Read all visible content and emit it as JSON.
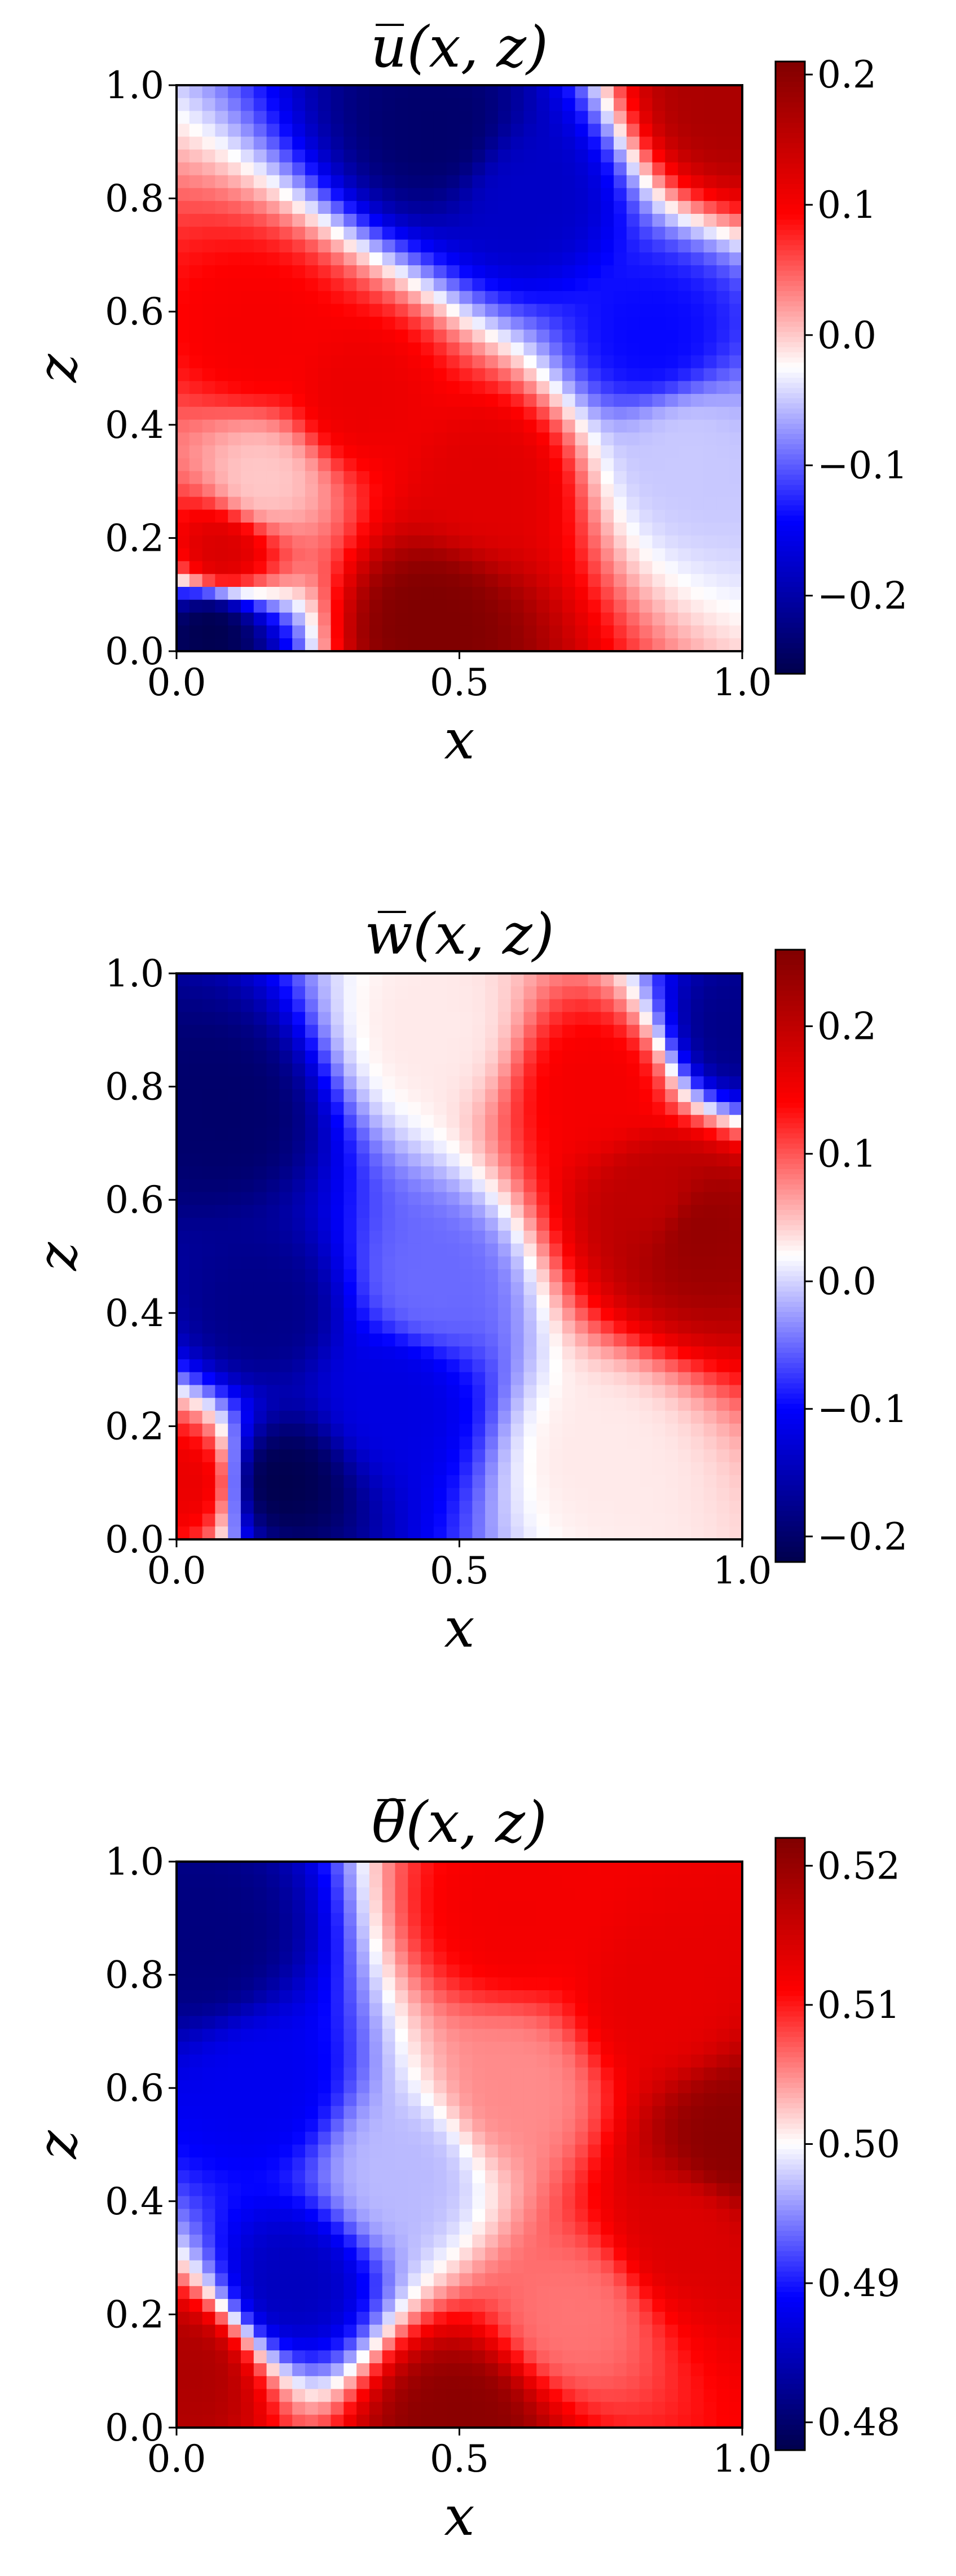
{
  "chart_data": [
    {
      "type": "heatmap",
      "title": "u̅(x, z)",
      "xlabel": "x",
      "ylabel": "z",
      "xlim": [
        0.0,
        1.0
      ],
      "ylim": [
        0.0,
        1.0
      ],
      "xticks": [
        "0.0",
        "0.5",
        "1.0"
      ],
      "yticks": [
        "0.0",
        "0.2",
        "0.4",
        "0.6",
        "0.8",
        "1.0"
      ],
      "colormap": "seismic",
      "clim": [
        -0.26,
        0.21
      ],
      "colorbar_ticks": [
        {
          "value": 0.2,
          "label": "0.2"
        },
        {
          "value": 0.1,
          "label": "0.1"
        },
        {
          "value": 0.0,
          "label": "0.0"
        },
        {
          "value": -0.1,
          "label": "−0.1"
        },
        {
          "value": -0.2,
          "label": "−0.2"
        }
      ],
      "features": [
        {
          "x": 0.46,
          "z": 0.92,
          "value": -0.24
        },
        {
          "x": 0.62,
          "z": 0.8,
          "value": -0.18
        },
        {
          "x": 0.84,
          "z": 0.55,
          "value": -0.14
        },
        {
          "x": 0.9,
          "z": 0.35,
          "value": -0.05
        },
        {
          "x": 0.97,
          "z": 0.98,
          "value": 0.17
        },
        {
          "x": 0.15,
          "z": 0.55,
          "value": 0.1
        },
        {
          "x": 0.32,
          "z": 0.45,
          "value": 0.11
        },
        {
          "x": 0.55,
          "z": 0.3,
          "value": 0.12
        },
        {
          "x": 0.45,
          "z": 0.05,
          "value": 0.21
        },
        {
          "x": 0.08,
          "z": 0.17,
          "value": 0.13
        },
        {
          "x": 0.15,
          "z": 0.3,
          "value": 0.0
        },
        {
          "x": 0.06,
          "z": 0.04,
          "value": -0.26
        }
      ]
    },
    {
      "type": "heatmap",
      "title": "w̅(x, z)",
      "xlabel": "x",
      "ylabel": "z",
      "xlim": [
        0.0,
        1.0
      ],
      "ylim": [
        0.0,
        1.0
      ],
      "xticks": [
        "0.0",
        "0.5",
        "1.0"
      ],
      "yticks": [
        "0.0",
        "0.2",
        "0.4",
        "0.6",
        "0.8",
        "1.0"
      ],
      "colormap": "seismic",
      "clim": [
        -0.22,
        0.26
      ],
      "colorbar_ticks": [
        {
          "value": 0.2,
          "label": "0.2"
        },
        {
          "value": 0.1,
          "label": "0.1"
        },
        {
          "value": 0.0,
          "label": "0.0"
        },
        {
          "value": -0.1,
          "label": "−0.1"
        },
        {
          "value": -0.2,
          "label": "−0.2"
        }
      ],
      "features": [
        {
          "x": 0.08,
          "z": 0.75,
          "value": -0.2
        },
        {
          "x": 0.15,
          "z": 0.4,
          "value": -0.18
        },
        {
          "x": 0.18,
          "z": 0.1,
          "value": -0.22
        },
        {
          "x": 0.38,
          "z": 0.25,
          "value": -0.12
        },
        {
          "x": 0.45,
          "z": 0.45,
          "value": -0.05
        },
        {
          "x": 0.45,
          "z": 0.9,
          "value": 0.03
        },
        {
          "x": 0.75,
          "z": 0.8,
          "value": 0.15
        },
        {
          "x": 0.85,
          "z": 0.6,
          "value": 0.2
        },
        {
          "x": 0.92,
          "z": 0.55,
          "value": 0.24
        },
        {
          "x": 0.75,
          "z": 0.15,
          "value": 0.03
        },
        {
          "x": 0.02,
          "z": 0.1,
          "value": 0.16
        },
        {
          "x": 0.99,
          "z": 0.9,
          "value": -0.18
        }
      ]
    },
    {
      "type": "heatmap",
      "title": "θ̅(x, z)",
      "xlabel": "x",
      "ylabel": "z",
      "xlim": [
        0.0,
        1.0
      ],
      "ylim": [
        0.0,
        1.0
      ],
      "xticks": [
        "0.0",
        "0.5",
        "1.0"
      ],
      "yticks": [
        "0.0",
        "0.2",
        "0.4",
        "0.6",
        "0.8",
        "1.0"
      ],
      "colormap": "seismic",
      "clim": [
        0.478,
        0.522
      ],
      "colorbar_ticks": [
        {
          "value": 0.52,
          "label": "0.52"
        },
        {
          "value": 0.51,
          "label": "0.51"
        },
        {
          "value": 0.5,
          "label": "0.50"
        },
        {
          "value": 0.49,
          "label": "0.49"
        },
        {
          "value": 0.48,
          "label": "0.48"
        }
      ],
      "features": [
        {
          "x": 0.05,
          "z": 0.85,
          "value": 0.481
        },
        {
          "x": 0.15,
          "z": 0.6,
          "value": 0.488
        },
        {
          "x": 0.2,
          "z": 0.25,
          "value": 0.485
        },
        {
          "x": 0.4,
          "z": 0.45,
          "value": 0.497
        },
        {
          "x": 0.6,
          "z": 0.9,
          "value": 0.512
        },
        {
          "x": 0.85,
          "z": 0.75,
          "value": 0.513
        },
        {
          "x": 0.9,
          "z": 0.35,
          "value": 0.514
        },
        {
          "x": 0.98,
          "z": 0.5,
          "value": 0.521
        },
        {
          "x": 0.6,
          "z": 0.6,
          "value": 0.505
        },
        {
          "x": 0.7,
          "z": 0.2,
          "value": 0.506
        },
        {
          "x": 0.5,
          "z": 0.01,
          "value": 0.521
        },
        {
          "x": 0.02,
          "z": 0.1,
          "value": 0.518
        }
      ]
    }
  ]
}
